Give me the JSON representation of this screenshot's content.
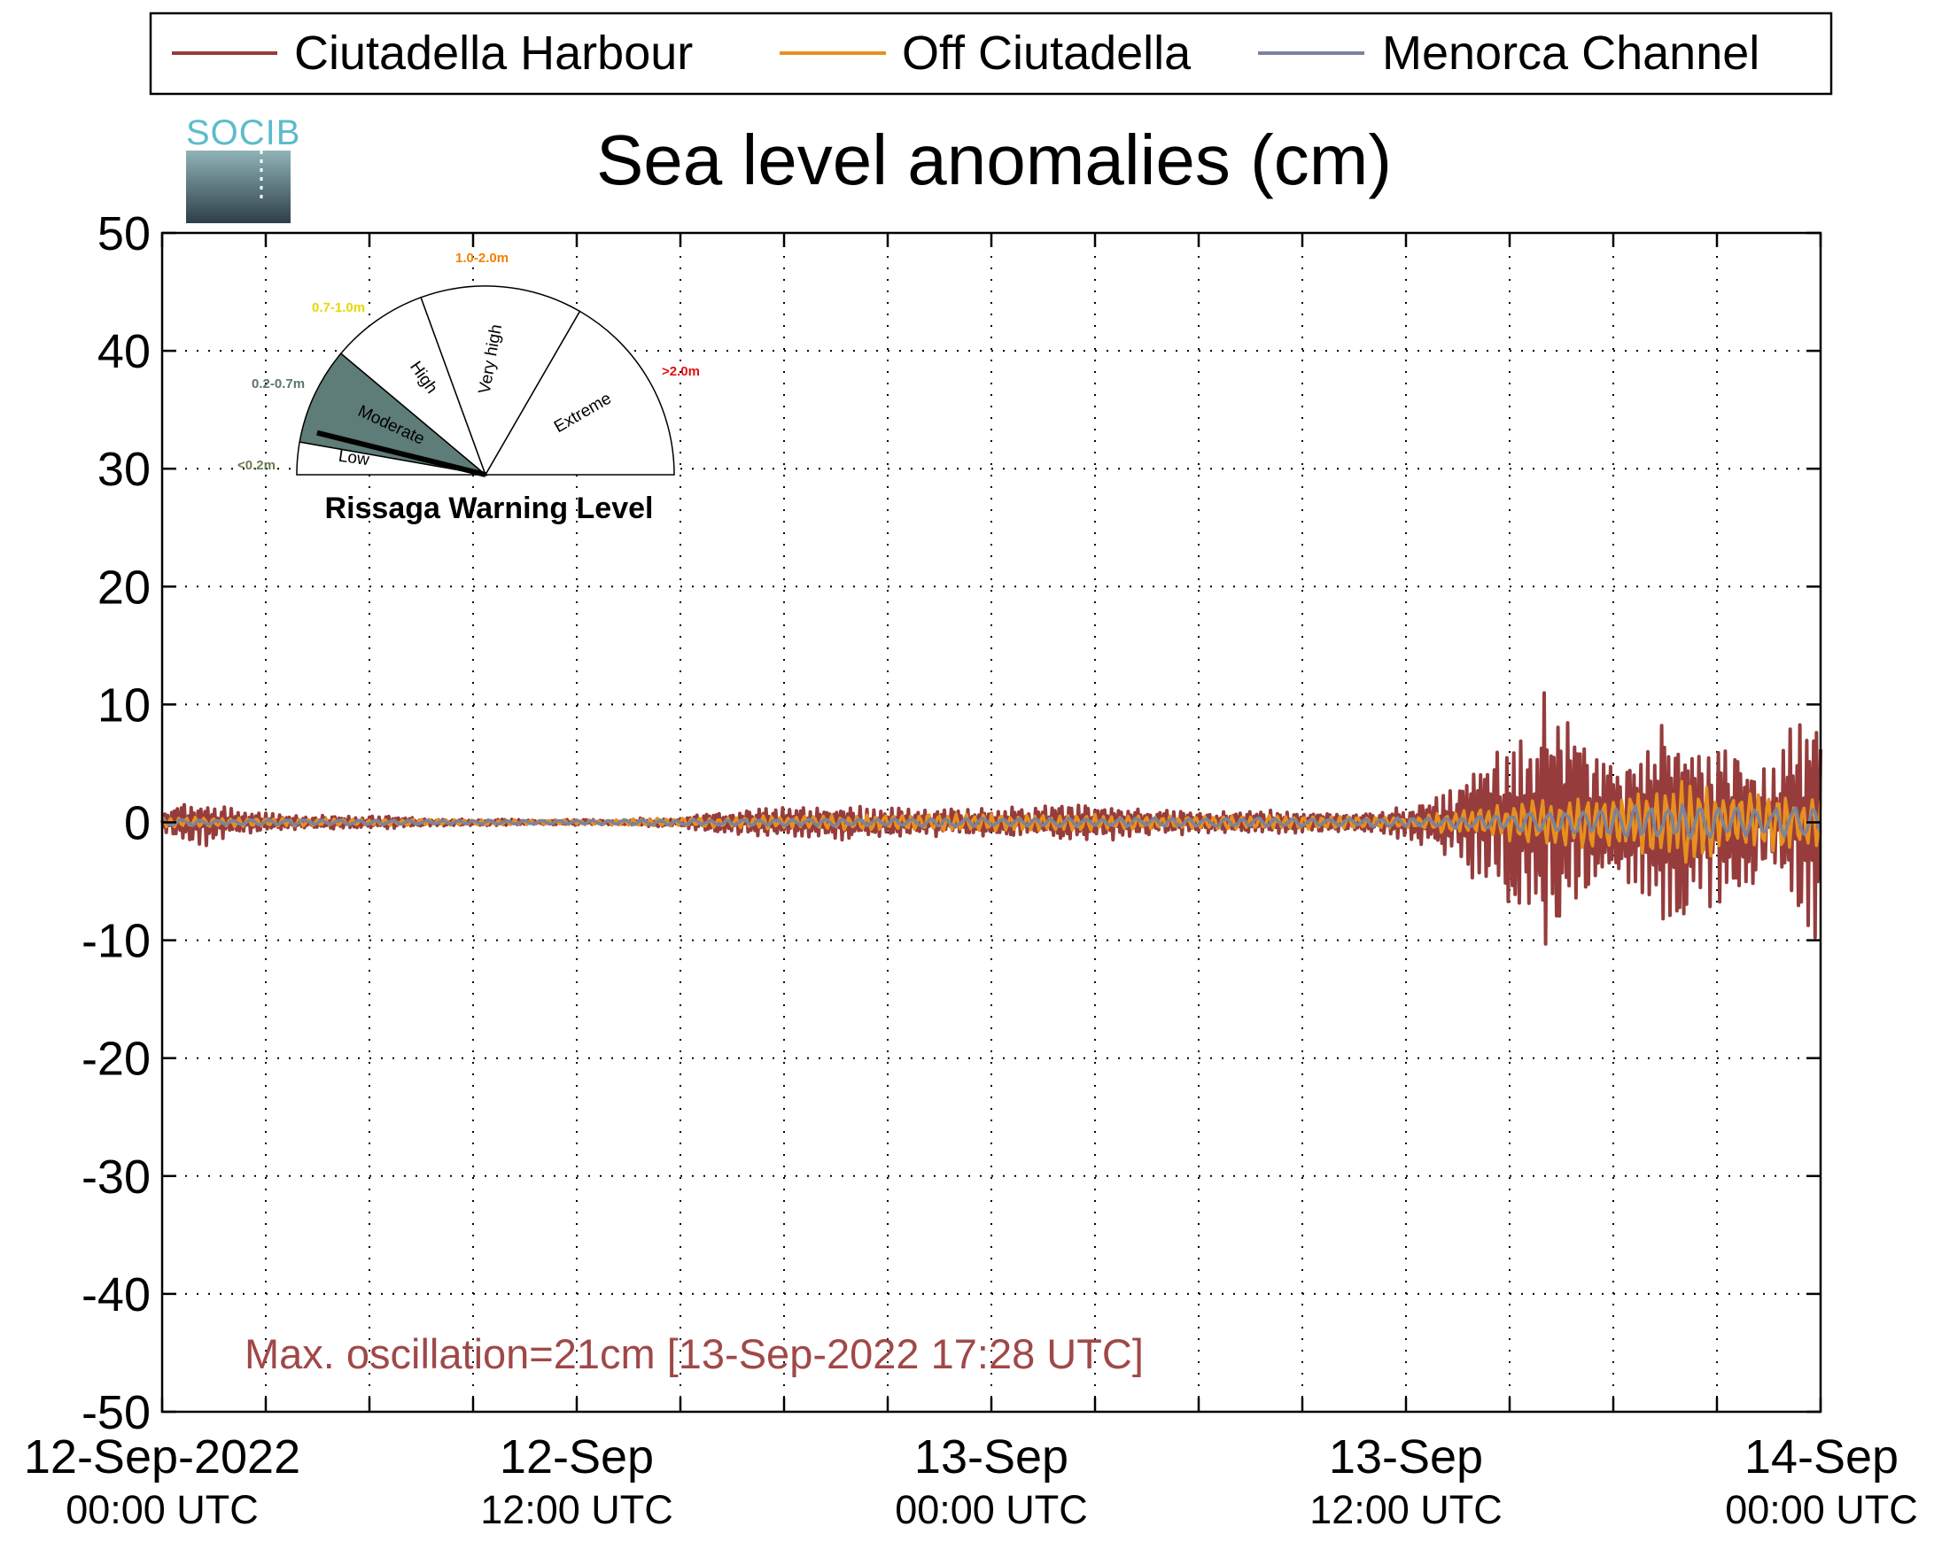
{
  "colors": {
    "ciutadella_harbour": "#963c3c",
    "off_ciutadella": "#e8901e",
    "menorca_channel": "#7a849c",
    "annotation": "#a04848",
    "logo_text": "#5bbccb",
    "warning_low": "#6a7a50",
    "warning_moderate": "#5a7474",
    "warning_moderate_fill": "#5e7c78",
    "warning_high": "#e8d800",
    "warning_very_high": "#f08000",
    "warning_extreme": "#e01010"
  },
  "logo": {
    "text": "SOCIB"
  },
  "chart_data": {
    "type": "line",
    "title": "Sea level anomalies (cm)",
    "xlabel": "",
    "ylabel": "",
    "ylim": [
      -50,
      50
    ],
    "yticks": [
      50,
      40,
      30,
      20,
      10,
      0,
      -10,
      -20,
      -30,
      -40,
      -50
    ],
    "xlim": [
      "2022-09-12T00:00Z",
      "2022-09-14T00:00Z"
    ],
    "xtick_labels": [
      {
        "date": "12-Sep-2022",
        "time": "00:00 UTC"
      },
      {
        "date": "12-Sep",
        "time": "12:00 UTC"
      },
      {
        "date": "13-Sep",
        "time": "00:00 UTC"
      },
      {
        "date": "13-Sep",
        "time": "12:00 UTC"
      },
      {
        "date": "14-Sep",
        "time": "00:00 UTC"
      }
    ],
    "grid": true,
    "legend_position": "top",
    "series": [
      {
        "name": "Ciutadella Harbour",
        "x_hours": [
          0,
          0.5,
          1,
          1.5,
          2,
          3,
          4,
          5,
          6,
          7,
          8,
          9,
          10,
          11,
          12,
          13,
          14,
          15,
          16,
          17,
          18,
          19,
          20,
          21,
          22,
          23,
          24,
          25,
          26,
          27,
          28,
          29,
          30,
          30.5,
          31,
          32,
          33,
          34,
          35,
          36,
          37,
          37.5,
          38,
          38.5,
          39,
          39.5,
          40,
          40.5,
          41,
          41.5,
          42,
          42.5,
          43,
          43.5,
          44,
          44.5,
          45,
          45.5,
          46,
          46.5,
          47,
          47.5,
          48
        ],
        "envelope_cm": [
          1,
          1.5,
          2.2,
          1.8,
          1.3,
          0.8,
          0.6,
          0.6,
          0.6,
          0.5,
          0.3,
          0.3,
          0.3,
          0.2,
          0.3,
          0.2,
          0.4,
          0.5,
          0.9,
          1.2,
          1.3,
          1.5,
          1.5,
          1.3,
          1.2,
          1.2,
          1.3,
          1.3,
          1.5,
          1.6,
          1.4,
          1.1,
          1.0,
          0.9,
          1.0,
          1.1,
          1.0,
          0.8,
          0.9,
          1.5,
          2.5,
          3.5,
          5,
          6,
          7,
          9,
          11,
          9,
          8,
          7,
          6,
          6,
          7,
          10,
          9,
          8,
          7,
          7,
          6,
          5,
          8,
          10,
          12
        ]
      },
      {
        "name": "Off Ciutadella",
        "x_hours": [
          0,
          6,
          12,
          18,
          24,
          30,
          36,
          38,
          40,
          42,
          44,
          46,
          48
        ],
        "envelope_cm": [
          0.5,
          0.3,
          0.2,
          0.6,
          0.8,
          0.6,
          0.6,
          1.2,
          2,
          2.5,
          3.5,
          2.5,
          2.5
        ]
      },
      {
        "name": "Menorca Channel",
        "x_hours": [
          0,
          6,
          12,
          18,
          24,
          30,
          36,
          38,
          40,
          42,
          44,
          46,
          48
        ],
        "envelope_cm": [
          0.3,
          0.2,
          0.2,
          0.3,
          0.4,
          0.4,
          0.4,
          0.6,
          1.0,
          1.4,
          1.6,
          1.2,
          1.6
        ]
      }
    ],
    "annotation": "Max. oscillation=21cm [13-Sep-2022 17:28 UTC]"
  },
  "gauge": {
    "title": "Rissaga Warning Level",
    "segments": [
      {
        "label": "Low",
        "range": "<0.2m"
      },
      {
        "label": "Moderate",
        "range": "0.2-0.7m"
      },
      {
        "label": "High",
        "range": "0.7-1.0m"
      },
      {
        "label": "Very high",
        "range": "1.0-2.0m"
      },
      {
        "label": "Extreme",
        "range": ">2.0m"
      }
    ],
    "current_level": "Moderate"
  }
}
